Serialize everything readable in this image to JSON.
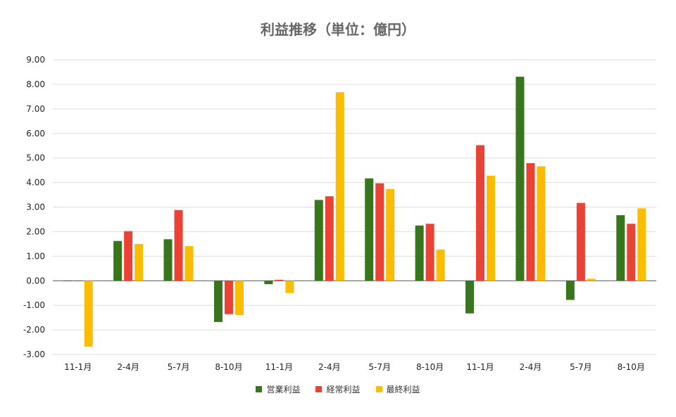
{
  "chart_data": {
    "type": "bar",
    "title": "利益推移（単位：億円）",
    "categories": [
      "11-1月",
      "2-4月",
      "5-7月",
      "8-10月",
      "11-1月",
      "2-4月",
      "5-7月",
      "8-10月",
      "11-1月",
      "2-4月",
      "5-7月",
      "8-10月"
    ],
    "series": [
      {
        "name": "営業利益",
        "color": "#38761d",
        "values": [
          -0.02,
          1.62,
          1.69,
          -1.68,
          -0.14,
          3.29,
          4.17,
          2.25,
          -1.33,
          8.31,
          -0.78,
          2.67
        ]
      },
      {
        "name": "経常利益",
        "color": "#ea4335",
        "values": [
          -0.02,
          2.02,
          2.88,
          -1.36,
          0.04,
          3.44,
          3.97,
          2.32,
          5.52,
          4.79,
          3.17,
          2.32
        ]
      },
      {
        "name": "最終利益",
        "color": "#fbbc04",
        "values": [
          -2.68,
          1.5,
          1.41,
          -1.4,
          -0.5,
          7.68,
          3.74,
          1.27,
          4.28,
          4.66,
          0.08,
          2.95
        ]
      }
    ],
    "ylim": [
      -3.0,
      9.0
    ],
    "yticks": [
      "9.00",
      "8.00",
      "7.00",
      "6.00",
      "5.00",
      "4.00",
      "3.00",
      "2.00",
      "1.00",
      "0.00",
      "-1.00",
      "-2.00",
      "-3.00"
    ],
    "xlabel": "",
    "ylabel": "",
    "grid": true,
    "legend_position": "bottom"
  }
}
